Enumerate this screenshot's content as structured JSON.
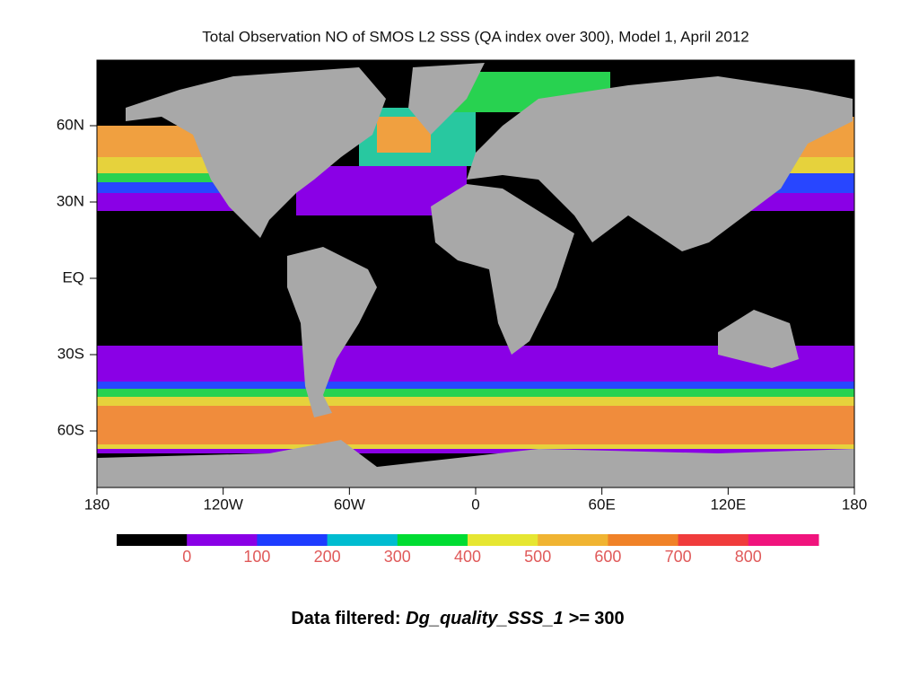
{
  "map": {
    "title": "Total Observation NO of SMOS L2 SSS (QA index over 300), Model 1, April 2012",
    "lat_ticks": [
      {
        "value": 60,
        "label": "60N"
      },
      {
        "value": 30,
        "label": "30N"
      },
      {
        "value": 0,
        "label": "EQ"
      },
      {
        "value": -30,
        "label": "30S"
      },
      {
        "value": -60,
        "label": "60S"
      }
    ],
    "lon_ticks": [
      {
        "value": -180,
        "label": "180"
      },
      {
        "value": -120,
        "label": "120W"
      },
      {
        "value": -60,
        "label": "60W"
      },
      {
        "value": 0,
        "label": "0"
      },
      {
        "value": 60,
        "label": "60E"
      },
      {
        "value": 120,
        "label": "120E"
      },
      {
        "value": 180,
        "label": "180"
      }
    ],
    "colorbar": {
      "colors": [
        "#000000",
        "#8a00e6",
        "#1e3cff",
        "#00bcd0",
        "#00dc32",
        "#e6e632",
        "#f0b432",
        "#f08228",
        "#f03c3c",
        "#f0147d"
      ],
      "labels": [
        0,
        100,
        200,
        300,
        400,
        500,
        600,
        700,
        800
      ]
    },
    "caption": {
      "prefix": "Data filtered:",
      "field": "Dg_quality_SSS_1 >=",
      "threshold": "300"
    }
  }
}
